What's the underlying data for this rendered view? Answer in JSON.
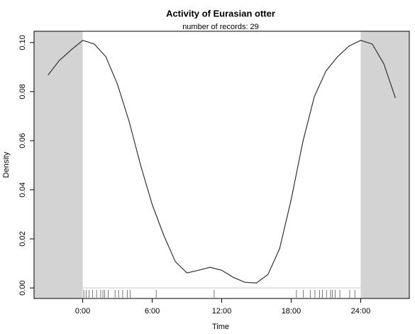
{
  "chart_data": {
    "type": "line",
    "title": "Activity of Eurasian otter",
    "subtitle": "number of records: 29",
    "x_label": "Time",
    "y_label": "Density",
    "x": [
      -3,
      -2,
      -1,
      0,
      1,
      2,
      3,
      4,
      5,
      6,
      7,
      8,
      9,
      10,
      11,
      12,
      13,
      14,
      15,
      16,
      17,
      18,
      19,
      20,
      21,
      22,
      23,
      24,
      25,
      26,
      27
    ],
    "series": [
      {
        "color": "#333333",
        "values": [
          0.0867,
          0.0928,
          0.097,
          0.1009,
          0.0994,
          0.0942,
          0.083,
          0.068,
          0.05,
          0.034,
          0.0214,
          0.0107,
          0.0061,
          0.0072,
          0.0084,
          0.0072,
          0.0043,
          0.0023,
          0.002,
          0.0055,
          0.016,
          0.036,
          0.0594,
          0.078,
          0.0884,
          0.0942,
          0.0986,
          0.1009,
          0.0994,
          0.0913,
          0.0774
        ]
      }
    ],
    "records": [
      0.1,
      0.3,
      0.55,
      0.85,
      1.2,
      1.55,
      1.75,
      1.9,
      2.2,
      2.8,
      3.1,
      3.45,
      3.85,
      4.1,
      6.35,
      11.35,
      18.45,
      19.05,
      19.65,
      20.05,
      20.45,
      20.7,
      21.05,
      21.4,
      21.55,
      21.8,
      22.2,
      23.05,
      23.5
    ],
    "day_range": [
      0,
      24
    ],
    "shade_color": "#d3d3d3",
    "xlim": [
      -4.2,
      28.2
    ],
    "ylim": [
      -0.0043,
      0.1046
    ],
    "xticks": [
      {
        "value": 0,
        "label": "0:00"
      },
      {
        "value": 6,
        "label": "6:00"
      },
      {
        "value": 12,
        "label": "12:00"
      },
      {
        "value": 18,
        "label": "18:00"
      },
      {
        "value": 24,
        "label": "24:00"
      }
    ],
    "yticks": [
      {
        "value": 0,
        "label": "0.00"
      },
      {
        "value": 0.02,
        "label": "0.02"
      },
      {
        "value": 0.04,
        "label": "0.04"
      },
      {
        "value": 0.06,
        "label": "0.06"
      },
      {
        "value": 0.08,
        "label": "0.08"
      },
      {
        "value": 0.1,
        "label": "0.10"
      }
    ]
  }
}
